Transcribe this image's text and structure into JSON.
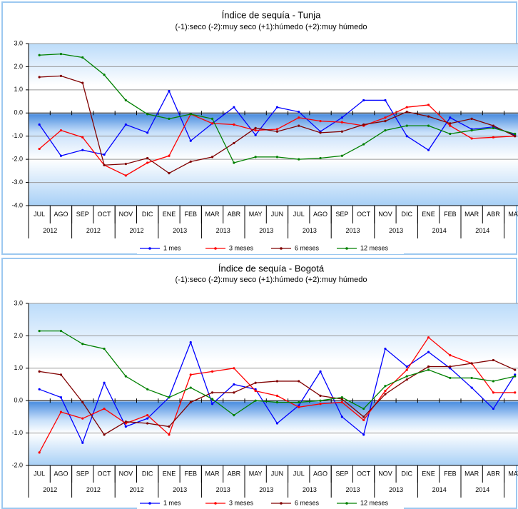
{
  "chart_data": [
    {
      "type": "line",
      "title": "Índice de sequía - Tunja",
      "subtitle": "(-1):seco  (-2):muy seco  (+1):húmedo  (+2):muy húmedo",
      "categories": [
        "JUL",
        "AGO",
        "SEP",
        "OCT",
        "NOV",
        "DIC",
        "ENE",
        "FEB",
        "MAR",
        "ABR",
        "MAY",
        "JUN",
        "JUL",
        "AGO",
        "SEP",
        "OCT",
        "NOV",
        "DIC",
        "ENE",
        "FEB",
        "MAR",
        "ABR",
        "MAY"
      ],
      "category_groups": [
        "2012",
        "2012",
        "2012",
        "2013",
        "2013",
        "2013",
        "2013",
        "2013",
        "2013",
        "2014",
        "2014"
      ],
      "ylim": [
        -4,
        3
      ],
      "yticks": [
        {
          "value": -4,
          "label": "-4.0"
        },
        {
          "value": -3,
          "label": "-3.0"
        },
        {
          "value": -2,
          "label": "-2.0"
        },
        {
          "value": -1,
          "label": "-1.0"
        },
        {
          "value": 0,
          "label": "0.0"
        },
        {
          "value": 1,
          "label": "1.0"
        },
        {
          "value": 2,
          "label": "2.0"
        },
        {
          "value": 3,
          "label": "3.0"
        }
      ],
      "grid": true,
      "legend": "bottom",
      "series": [
        {
          "name": "1 mes",
          "color": "#0000ff",
          "values": [
            -0.5,
            -1.85,
            -1.6,
            -1.8,
            -0.5,
            -0.85,
            0.95,
            -1.2,
            -0.45,
            0.25,
            -0.95,
            0.25,
            0.05,
            -0.8,
            -0.2,
            0.55,
            0.55,
            -1.0,
            -1.6,
            -0.2,
            -0.7,
            -0.6,
            -0.95
          ]
        },
        {
          "name": "3 meses",
          "color": "#ff0000",
          "values": [
            -1.55,
            -0.75,
            -1.05,
            -2.25,
            -2.7,
            -2.15,
            -1.85,
            -0.05,
            -0.45,
            -0.5,
            -0.75,
            -0.7,
            -0.2,
            -0.35,
            -0.4,
            -0.55,
            -0.2,
            0.25,
            0.35,
            -0.55,
            -1.1,
            -1.05,
            -1.0
          ]
        },
        {
          "name": "6 meses",
          "color": "#800000",
          "values": [
            1.55,
            1.6,
            1.3,
            -2.25,
            -2.2,
            -1.95,
            -2.6,
            -2.1,
            -1.9,
            -1.3,
            -0.65,
            -0.8,
            -0.55,
            -0.85,
            -0.8,
            -0.5,
            -0.35,
            0.05,
            -0.15,
            -0.45,
            -0.25,
            -0.55,
            -1.0
          ]
        },
        {
          "name": "12 meses",
          "color": "#008000",
          "values": [
            2.5,
            2.55,
            2.4,
            1.65,
            0.55,
            -0.05,
            -0.25,
            -0.05,
            -0.25,
            -2.15,
            -1.9,
            -1.9,
            -2.0,
            -1.95,
            -1.85,
            -1.35,
            -0.75,
            -0.55,
            -0.55,
            -0.9,
            -0.75,
            -0.65,
            -0.9
          ]
        }
      ]
    },
    {
      "type": "line",
      "title": "Índice de sequía - Bogotá",
      "subtitle": "(-1):seco  (-2):muy seco  (+1):húmedo  (+2):muy húmedo",
      "categories": [
        "JUL",
        "AGO",
        "SEP",
        "OCT",
        "NOV",
        "DIC",
        "ENE",
        "FEB",
        "MAR",
        "ABR",
        "MAY",
        "JUN",
        "JUL",
        "AGO",
        "SEP",
        "OCT",
        "NOV",
        "DIC",
        "ENE",
        "FEB",
        "MAR",
        "ABR",
        "MAY"
      ],
      "category_groups": [
        "2012",
        "2012",
        "2012",
        "2013",
        "2013",
        "2013",
        "2013",
        "2013",
        "2013",
        "2014",
        "2014"
      ],
      "ylim": [
        -2,
        3
      ],
      "yticks": [
        {
          "value": -2,
          "label": "-2.0"
        },
        {
          "value": -1,
          "label": "-1.0"
        },
        {
          "value": 0,
          "label": "0.0"
        },
        {
          "value": 1,
          "label": "1.0"
        },
        {
          "value": 2,
          "label": "2.0"
        },
        {
          "value": 3,
          "label": "3.0"
        }
      ],
      "grid": true,
      "legend": "bottom",
      "series": [
        {
          "name": "1 mes",
          "color": "#0000ff",
          "values": [
            0.35,
            0.1,
            -1.3,
            0.55,
            -0.8,
            -0.55,
            0.1,
            1.8,
            -0.1,
            0.5,
            0.35,
            -0.7,
            -0.15,
            0.9,
            -0.5,
            -1.05,
            1.6,
            1.05,
            1.5,
            1.0,
            0.4,
            -0.25,
            0.8
          ]
        },
        {
          "name": "3 meses",
          "color": "#ff0000",
          "values": [
            -1.6,
            -0.35,
            -0.55,
            -0.25,
            -0.7,
            -0.45,
            -1.05,
            0.8,
            0.9,
            1.0,
            0.3,
            0.15,
            -0.2,
            -0.1,
            -0.05,
            -0.6,
            0.3,
            0.95,
            1.95,
            1.4,
            1.15,
            0.25,
            0.25
          ]
        },
        {
          "name": "6 meses",
          "color": "#800000",
          "values": [
            0.9,
            0.8,
            -0.05,
            -1.05,
            -0.65,
            -0.7,
            -0.8,
            -0.05,
            0.25,
            0.25,
            0.55,
            0.6,
            0.6,
            0.15,
            0.05,
            -0.5,
            0.2,
            0.65,
            1.05,
            1.05,
            1.15,
            1.25,
            0.95
          ]
        },
        {
          "name": "12 meses",
          "color": "#008000",
          "values": [
            2.15,
            2.15,
            1.75,
            1.6,
            0.75,
            0.35,
            0.1,
            0.4,
            0.05,
            -0.45,
            0.0,
            -0.05,
            -0.05,
            0.0,
            0.1,
            -0.25,
            0.45,
            0.75,
            0.95,
            0.7,
            0.7,
            0.6,
            0.75
          ]
        }
      ]
    }
  ]
}
